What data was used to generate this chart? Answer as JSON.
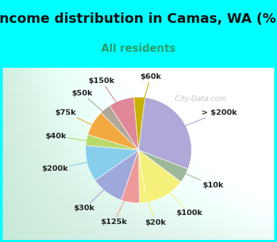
{
  "title": "Income distribution in Camas, WA (%)",
  "subtitle": "All residents",
  "bg_color": "#00FFFF",
  "watermark": "City-Data.com",
  "labels": [
    "> $200k",
    "$10k",
    "$100k",
    "$20k",
    "$125k",
    "$30k",
    "$200k",
    "$40k",
    "$75k",
    "$50k",
    "$150k",
    "$60k"
  ],
  "sizes": [
    26,
    4,
    11,
    2,
    5,
    9,
    10,
    3,
    7,
    3,
    7,
    3
  ],
  "colors": [
    "#b0a8d8",
    "#9db89a",
    "#f5f07a",
    "#f5f07a",
    "#ef9a9a",
    "#9fa8da",
    "#87ceeb",
    "#b8d96a",
    "#f4a840",
    "#b0a898",
    "#e08898",
    "#c8b000"
  ],
  "startangle": 83,
  "title_fontsize": 14,
  "subtitle_fontsize": 11,
  "subtitle_color": "#2a9d6a",
  "label_fontsize": 8,
  "label_color": "#222222"
}
